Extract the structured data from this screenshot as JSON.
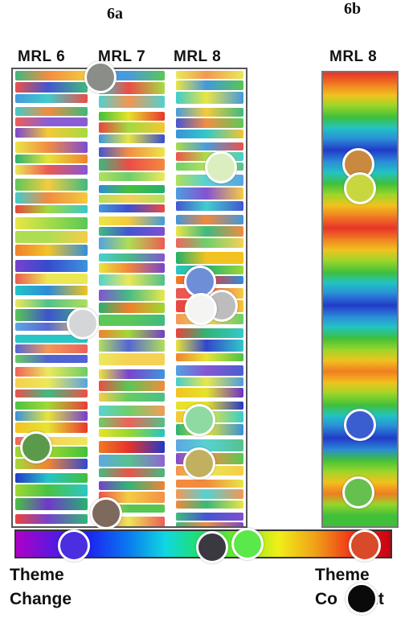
{
  "figure": {
    "label_a": "6a",
    "label_b": "6b",
    "columns_a": [
      "MRL 6",
      "MRL 7",
      "MRL 8"
    ],
    "column_b": "MRL 8",
    "scale_left_line1": "Theme",
    "scale_left_line2": "Change",
    "scale_right_line1": "Theme",
    "scale_right_line2": "Co",
    "scale_right_line3": "nt"
  },
  "colors": {
    "band_palette": [
      "#e8322a",
      "#f07a22",
      "#f2c21e",
      "#e6e22a",
      "#9ad62a",
      "#3fbf3a",
      "#1fae6a",
      "#22c4c4",
      "#2a8ad8",
      "#2238c8",
      "#6a2fc8"
    ],
    "spectrum": [
      "#b000c8",
      "#5a18e0",
      "#1a28f0",
      "#0a7af0",
      "#10d8e0",
      "#20e060",
      "#7ae820",
      "#f0f018",
      "#f0a018",
      "#f03018",
      "#c80010"
    ],
    "strip_sequence_b": [
      "#e8322a",
      "#f07a22",
      "#f2c21e",
      "#9ad62a",
      "#3fbf3a",
      "#22c4c4",
      "#2a8ad8",
      "#2238c8",
      "#2a8ad8",
      "#22c4c4",
      "#3fbf3a",
      "#9ad62a",
      "#f2c21e",
      "#f07a22",
      "#e8322a",
      "#f07a22",
      "#f2c21e",
      "#9ad62a",
      "#3fbf3a",
      "#22c4c4",
      "#2a8ad8",
      "#2238c8",
      "#2a8ad8",
      "#22c4c4",
      "#3fbf3a",
      "#9ad62a",
      "#f2c21e",
      "#f07a22",
      "#f2c21e",
      "#9ad62a",
      "#3fbf3a",
      "#22c4c4",
      "#2a8ad8",
      "#2238c8",
      "#2a8ad8",
      "#3fbf3a",
      "#9ad62a",
      "#f2c21e",
      "#f07a22",
      "#9ad62a",
      "#3fbf3a"
    ]
  },
  "markers": [
    {
      "name": "marker-gray-top",
      "color": "#8a8d88"
    },
    {
      "name": "marker-pale-green",
      "color": "#dbeec0"
    },
    {
      "name": "marker-orange-brown",
      "color": "#c98a40"
    },
    {
      "name": "marker-yellow-green",
      "color": "#c8d640"
    },
    {
      "name": "marker-periwinkle",
      "color": "#6f8ed8"
    },
    {
      "name": "marker-light-gray",
      "color": "#bdbdbd"
    },
    {
      "name": "marker-white",
      "color": "#f4f4f2"
    },
    {
      "name": "marker-silver",
      "color": "#d4d6d8"
    },
    {
      "name": "marker-mint",
      "color": "#8edaa2"
    },
    {
      "name": "marker-royal-blue",
      "color": "#3a5ed0"
    },
    {
      "name": "marker-forest-green",
      "color": "#5a9a4a"
    },
    {
      "name": "marker-olive",
      "color": "#c0b060"
    },
    {
      "name": "marker-green",
      "color": "#66c050"
    },
    {
      "name": "marker-taupe",
      "color": "#7e6a5c"
    },
    {
      "name": "marker-violet-blue",
      "color": "#4a2ee0"
    },
    {
      "name": "marker-charcoal",
      "color": "#3a3840"
    },
    {
      "name": "marker-bright-green",
      "color": "#5ae84a"
    },
    {
      "name": "marker-red-orange",
      "color": "#d84a28"
    },
    {
      "name": "marker-black",
      "color": "#0a0a0a"
    }
  ]
}
